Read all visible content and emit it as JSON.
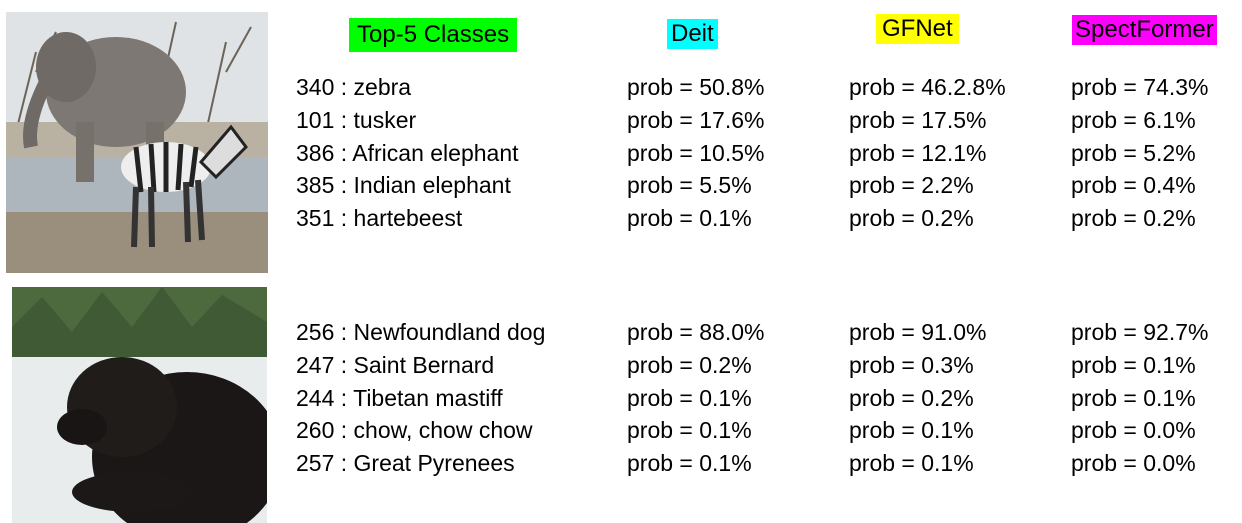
{
  "headers": {
    "classes": "Top-5 Classes",
    "deit": "Deit",
    "gfnet": "GFNet",
    "spectformer": "SpectFormer"
  },
  "groups": [
    {
      "rows": [
        [
          "340 : zebra",
          "prob = 50.8%",
          "prob = 46.2.8%",
          "prob = 74.3%"
        ],
        [
          "101 : tusker",
          "prob = 17.6%",
          "prob = 17.5%",
          "prob = 6.1%"
        ],
        [
          "386 : African elephant",
          "prob = 10.5%",
          "prob = 12.1%",
          "prob = 5.2%"
        ],
        [
          "385 : Indian elephant",
          "prob = 5.5%",
          "prob = 2.2%",
          "prob = 0.4%"
        ],
        [
          "351 : hartebeest",
          "prob = 0.1%",
          "prob = 0.2%",
          "prob = 0.2%"
        ]
      ]
    },
    {
      "rows": [
        [
          "256 : Newfoundland dog",
          "prob = 88.0%",
          "prob = 91.0%",
          "prob = 92.7%"
        ],
        [
          "247 : Saint Bernard",
          "prob = 0.2%",
          "prob = 0.3%",
          "prob = 0.1%"
        ],
        [
          "244 : Tibetan mastiff",
          "prob = 0.1%",
          "prob = 0.2%",
          "prob = 0.1%"
        ],
        [
          "260 : chow, chow chow",
          "prob = 0.1%",
          "prob = 0.1%",
          "prob = 0.0%"
        ],
        [
          "257 : Great Pyrenees",
          "prob = 0.1%",
          "prob = 0.1%",
          "prob = 0.0%"
        ]
      ]
    }
  ]
}
